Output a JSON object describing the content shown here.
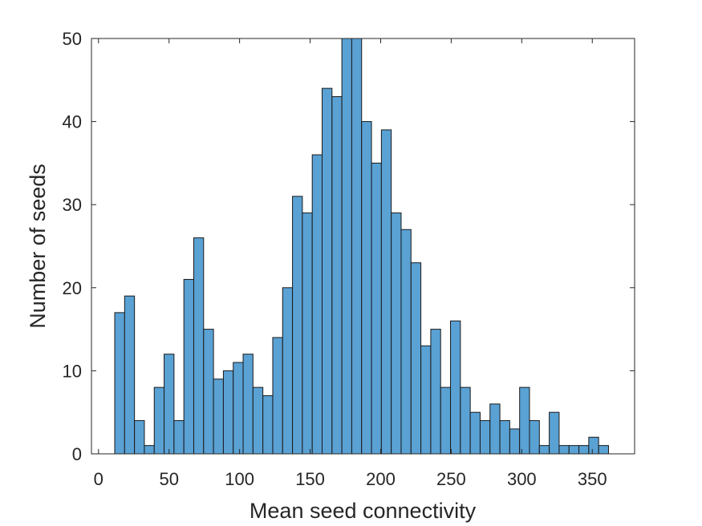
{
  "chart_data": {
    "type": "bar",
    "histogram": true,
    "xlabel": "Mean seed connectivity",
    "ylabel": "Number of seeds",
    "xlim": [
      -5,
      380
    ],
    "ylim": [
      0,
      50
    ],
    "xticks": [
      0,
      50,
      100,
      150,
      200,
      250,
      300,
      350
    ],
    "yticks": [
      0,
      10,
      20,
      30,
      40,
      50
    ],
    "bin_width": 7,
    "bin_edges_start": 11.5,
    "values": [
      17,
      19,
      4,
      1,
      8,
      12,
      4,
      21,
      26,
      15,
      9,
      10,
      11,
      12,
      8,
      7,
      14,
      20,
      31,
      29,
      36,
      44,
      43,
      50,
      50,
      40,
      35,
      39,
      29,
      27,
      23,
      13,
      15,
      8,
      16,
      8,
      5,
      4,
      6,
      4,
      3,
      8,
      4,
      1,
      5,
      1,
      1,
      1,
      2,
      1
    ],
    "bar_color": "#5aa1d4",
    "edge_color": "#1a1a1a",
    "grid": false,
    "box": true
  }
}
